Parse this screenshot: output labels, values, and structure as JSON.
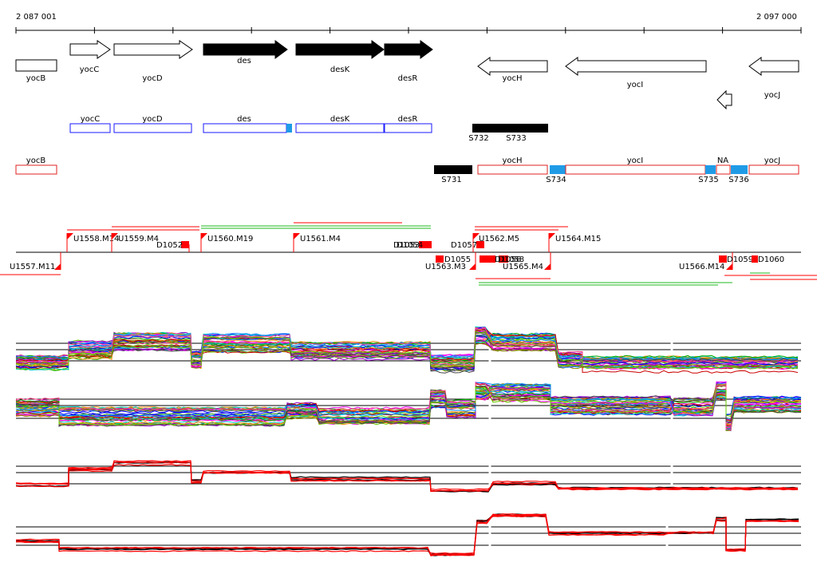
{
  "coordinates": {
    "start_label": "2 087 001",
    "end_label": "2 097 000"
  },
  "colors": {
    "black": "#000000",
    "white": "#ffffff",
    "blue_outline": "#1a1aff",
    "blue_fill": "#1f9be6",
    "red": "#ff0000",
    "red_outline": "#e02020",
    "green": "#22bb22",
    "gray": "#c8c8c8"
  },
  "genes": [
    {
      "name": "yocB",
      "strand": "none",
      "fill": "white"
    },
    {
      "name": "yocC",
      "strand": "+",
      "fill": "white"
    },
    {
      "name": "yocD",
      "strand": "+",
      "fill": "white"
    },
    {
      "name": "des",
      "strand": "+",
      "fill": "black"
    },
    {
      "name": "desK",
      "strand": "+",
      "fill": "black"
    },
    {
      "name": "desR",
      "strand": "+",
      "fill": "black"
    },
    {
      "name": "yocH",
      "strand": "-",
      "fill": "white"
    },
    {
      "name": "yocI",
      "strand": "-",
      "fill": "white"
    },
    {
      "name": "yocJ",
      "strand": "-",
      "fill": "white"
    },
    {
      "name": "",
      "strand": "-",
      "fill": "white"
    }
  ],
  "transcripts_blue": [
    "yocC",
    "yocD",
    "des",
    "desK",
    "desR"
  ],
  "segments_black": [
    "S732",
    "S733",
    "S731"
  ],
  "transcripts_red": [
    "yocB",
    "yocH",
    "yocI",
    "NA",
    "yocJ"
  ],
  "segments_blue": [
    "S734",
    "S735",
    "S736"
  ],
  "upshifts": [
    "U1557.M11",
    "U1558.M14",
    "U1559.M4",
    "U1560.M19",
    "U1561.M4",
    "U1562.M5",
    "U1563.M3",
    "U1564.M15",
    "U1565.M4",
    "U1566.M14"
  ],
  "downshifts": [
    "D1052",
    "D1053",
    "D1054",
    "D1055",
    "D1056",
    "D1057",
    "D1058",
    "D1059",
    "D1060"
  ]
}
